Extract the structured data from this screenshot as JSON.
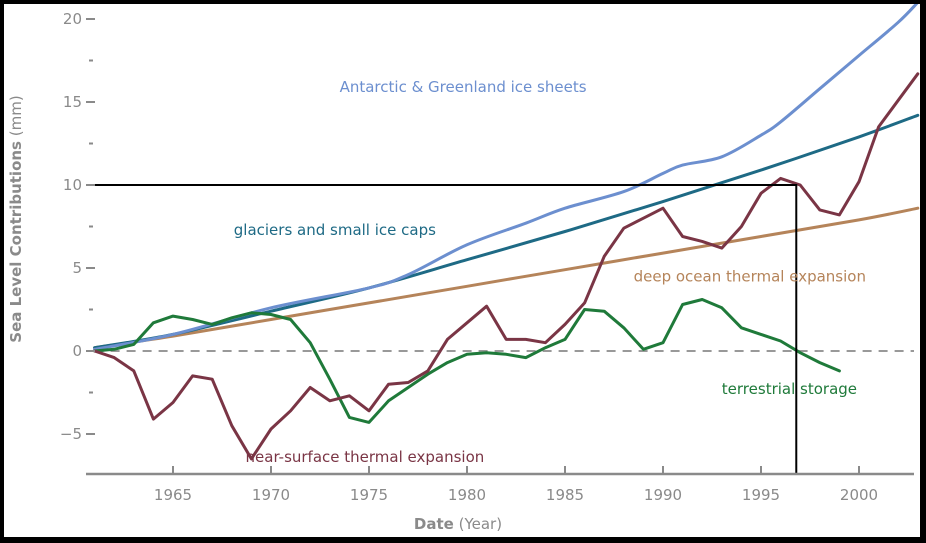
{
  "chart_data": {
    "type": "line",
    "title": "",
    "xlabel": "Date",
    "xlabel_unit": "(Year)",
    "ylabel": "Sea Level Contributions",
    "ylabel_unit": "(mm)",
    "xlim": [
      1961,
      2003
    ],
    "ylim": [
      -7.5,
      20.5
    ],
    "x_ticks": [
      1965,
      1970,
      1975,
      1980,
      1985,
      1990,
      1995,
      2000
    ],
    "x_tick_labels": [
      "1965",
      "1970",
      "1975",
      "1980",
      "1985",
      "1990",
      "1995",
      "2000"
    ],
    "y_ticks": [
      -5,
      0,
      5,
      10,
      15,
      20
    ],
    "y_tick_labels": [
      "−5",
      "0",
      "5",
      "10",
      "15",
      "20"
    ],
    "y_minor_ticks": [
      -2.5,
      2.5,
      7.5,
      12.5,
      17.5
    ],
    "zero_line": {
      "value": 0,
      "style": "dashed",
      "color": "#999999"
    },
    "grid": false,
    "legend": "inline labels",
    "annotation": {
      "x": 1996.8,
      "y": 10,
      "type": "crosshair-to-axes",
      "color": "#000000"
    },
    "series": [
      {
        "name": "Antarctic & Greenland ice sheets",
        "color": "#6c8fcf",
        "smooth": true,
        "x": [
          1961,
          1965,
          1970,
          1975,
          1977,
          1980,
          1983,
          1985,
          1988,
          1990,
          1991,
          1993,
          1995,
          1996,
          1998,
          2000,
          2002,
          2003
        ],
        "values": [
          0.1,
          1.0,
          2.6,
          3.8,
          4.6,
          6.4,
          7.7,
          8.6,
          9.6,
          10.7,
          11.2,
          11.7,
          13.0,
          13.8,
          15.8,
          17.8,
          19.8,
          21.0
        ]
      },
      {
        "name": "glaciers and small ice caps",
        "color": "#1e6a85",
        "smooth": true,
        "x": [
          1961,
          1965,
          1970,
          1975,
          1980,
          1985,
          1990,
          1995,
          2000,
          2003
        ],
        "values": [
          0.2,
          1.0,
          2.4,
          3.8,
          5.5,
          7.2,
          9.0,
          10.9,
          12.9,
          14.2
        ]
      },
      {
        "name": "deep ocean thermal expansion",
        "color": "#b5845a",
        "smooth": true,
        "x": [
          1961,
          1965,
          1970,
          1975,
          1980,
          1985,
          1990,
          1995,
          2000,
          2003
        ],
        "values": [
          0.2,
          0.9,
          1.9,
          2.9,
          3.9,
          4.9,
          5.9,
          6.9,
          7.9,
          8.6
        ]
      },
      {
        "name": "near-surface thermal expansion",
        "color": "#7a3545",
        "smooth": false,
        "x": [
          1961,
          1962,
          1963,
          1964,
          1965,
          1966,
          1967,
          1968,
          1969,
          1970,
          1971,
          1972,
          1973,
          1974,
          1975,
          1976,
          1977,
          1978,
          1979,
          1980,
          1981,
          1982,
          1983,
          1984,
          1985,
          1986,
          1987,
          1988,
          1989,
          1990,
          1991,
          1992,
          1993,
          1994,
          1995,
          1996,
          1997,
          1998,
          1999,
          2000,
          2001,
          2002,
          2003
        ],
        "values": [
          0,
          -0.4,
          -1.2,
          -4.1,
          -3.1,
          -1.5,
          -1.7,
          -4.5,
          -6.5,
          -4.7,
          -3.6,
          -2.2,
          -3.0,
          -2.7,
          -3.6,
          -2.0,
          -1.9,
          -1.2,
          0.7,
          1.7,
          2.7,
          0.7,
          0.7,
          0.5,
          1.6,
          2.9,
          5.7,
          7.4,
          8.0,
          8.6,
          6.9,
          6.6,
          6.2,
          7.5,
          9.5,
          10.4,
          10.0,
          8.5,
          8.2,
          10.2,
          13.5,
          15.1,
          16.7
        ]
      },
      {
        "name": "terrestrial storage",
        "color": "#1f7a3a",
        "smooth": false,
        "x": [
          1961,
          1962,
          1963,
          1964,
          1965,
          1966,
          1967,
          1968,
          1969,
          1970,
          1971,
          1972,
          1973,
          1974,
          1975,
          1976,
          1977,
          1978,
          1979,
          1980,
          1981,
          1982,
          1983,
          1984,
          1985,
          1986,
          1987,
          1988,
          1989,
          1990,
          1991,
          1992,
          1993,
          1994,
          1995,
          1996,
          1997,
          1998,
          1999
        ],
        "values": [
          0,
          0.1,
          0.4,
          1.7,
          2.1,
          1.9,
          1.6,
          2.0,
          2.3,
          2.2,
          1.9,
          0.5,
          -1.7,
          -4.0,
          -4.3,
          -3.0,
          -2.2,
          -1.4,
          -0.7,
          -0.2,
          -0.1,
          -0.2,
          -0.4,
          0.2,
          0.7,
          2.5,
          2.4,
          1.4,
          0.1,
          0.5,
          2.8,
          3.1,
          2.6,
          1.4,
          1.0,
          0.6,
          -0.1,
          -0.7,
          -1.2
        ]
      }
    ],
    "series_labels": [
      {
        "series": 0,
        "text": "Antarctic & Greenland ice sheets",
        "at_x": 1973.5,
        "at_y": 15.6
      },
      {
        "series": 1,
        "text": "glaciers and small ice caps",
        "at_x": 1968.1,
        "at_y": 7.0
      },
      {
        "series": 2,
        "text": "deep ocean thermal expansion",
        "at_x": 1988.5,
        "at_y": 4.2
      },
      {
        "series": 3,
        "text": "near-surface thermal expansion",
        "at_x": 1968.7,
        "at_y": -6.7
      },
      {
        "series": 4,
        "text": "terrestrial storage",
        "at_x": 1993.0,
        "at_y": -2.6
      }
    ]
  }
}
